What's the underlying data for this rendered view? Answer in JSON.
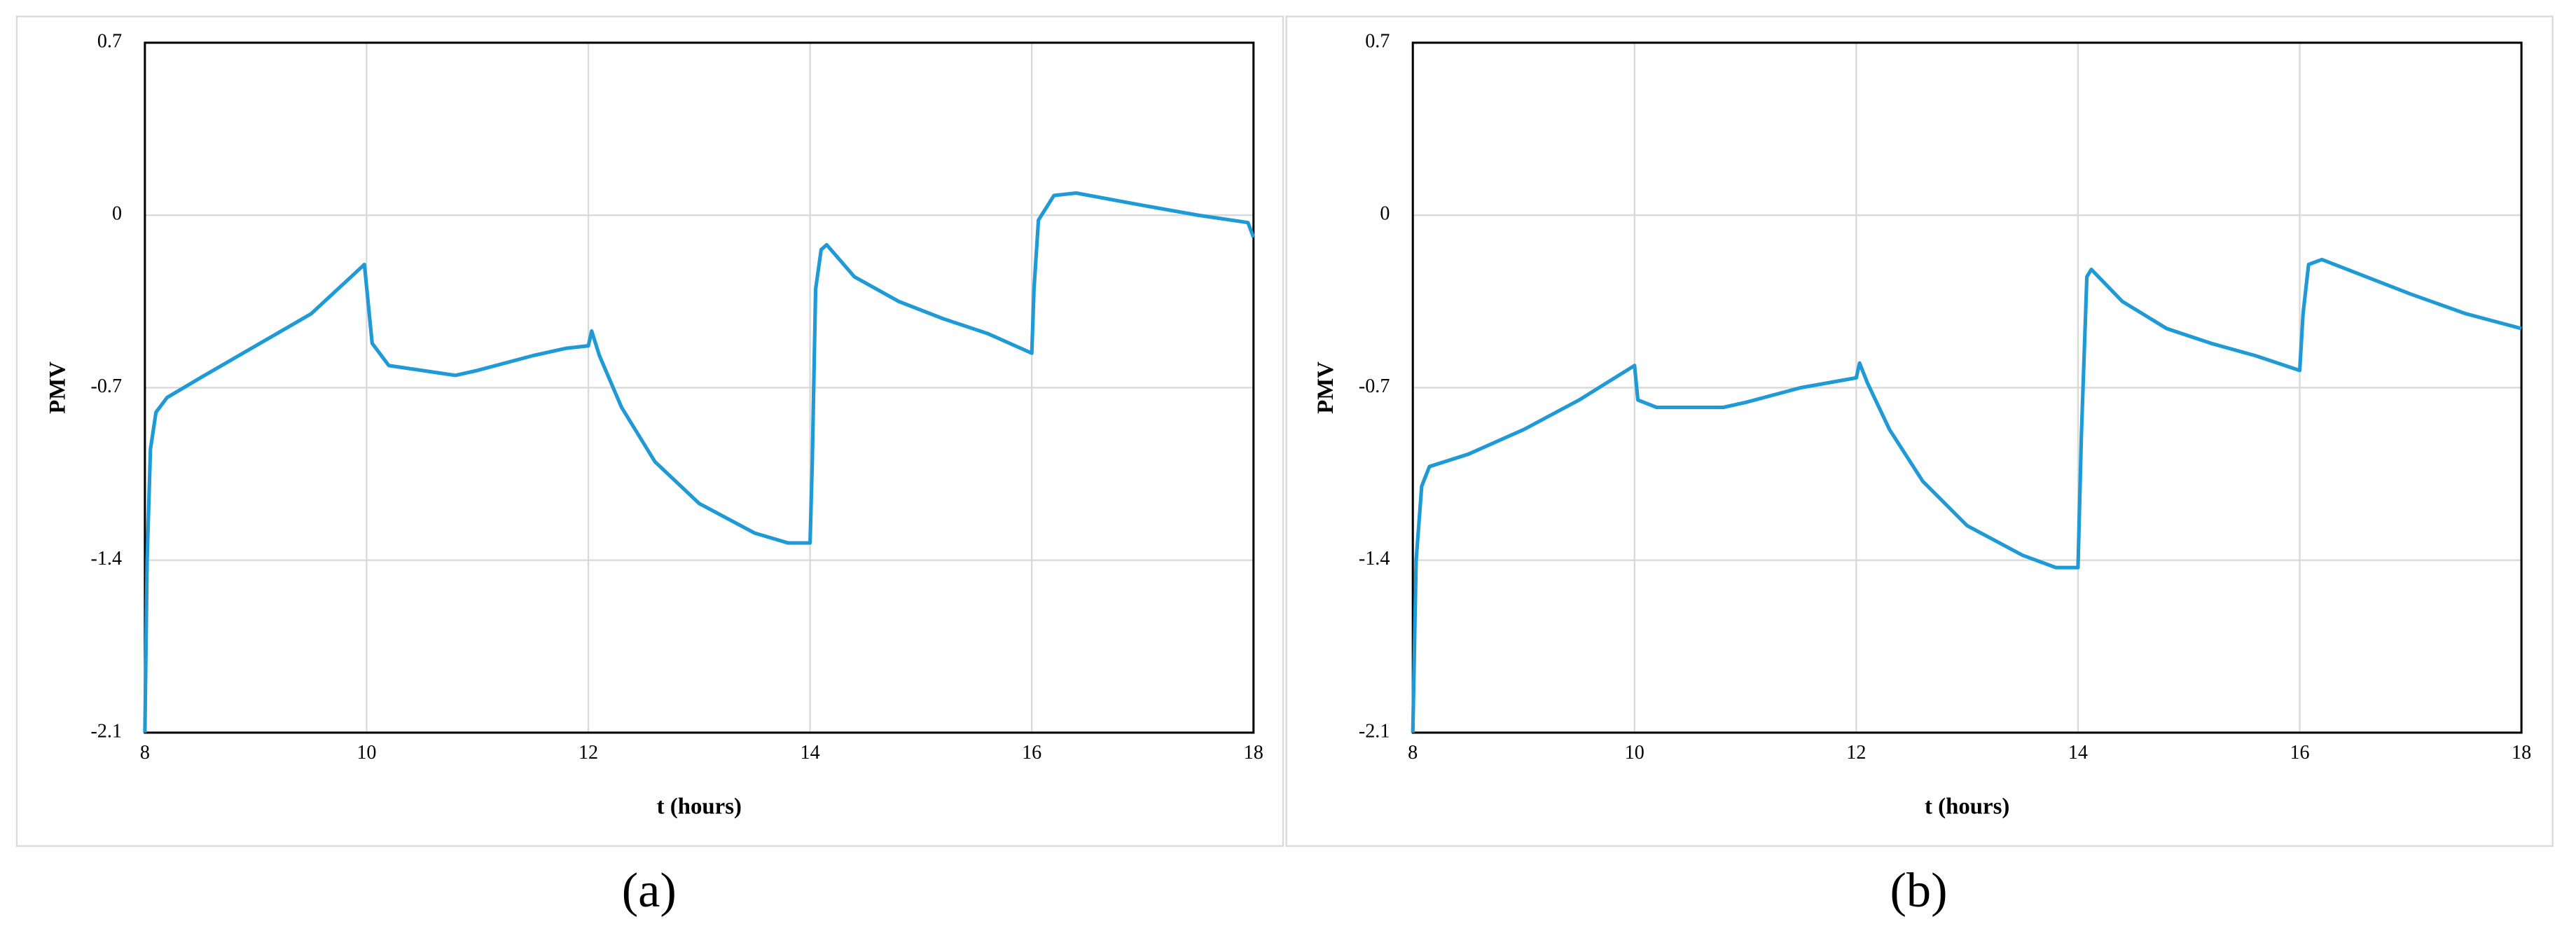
{
  "chart_data": [
    {
      "type": "line",
      "panel_label": "(a)",
      "xlabel": "t (hours)",
      "ylabel": "PMV",
      "color": "#1f9ad6",
      "grid": true,
      "xlim": [
        8,
        18
      ],
      "xticks": [
        8,
        10,
        12,
        14,
        16,
        18
      ],
      "ylim": [
        -2.1,
        0.7
      ],
      "yticks": [
        -2.1,
        -1.4,
        -0.7,
        0,
        0.7
      ],
      "x": [
        8,
        8.02,
        8.05,
        8.1,
        8.2,
        8.5,
        9,
        9.5,
        9.98,
        10.05,
        10.2,
        10.5,
        10.8,
        11,
        11.5,
        11.8,
        12,
        12.03,
        12.1,
        12.3,
        12.6,
        13,
        13.5,
        13.8,
        14,
        14.02,
        14.05,
        14.1,
        14.15,
        14.4,
        14.8,
        15.2,
        15.6,
        16,
        16.02,
        16.06,
        16.2,
        16.4,
        17,
        17.5,
        17.95,
        18
      ],
      "values": [
        -2.1,
        -1.4,
        -0.95,
        -0.8,
        -0.74,
        -0.66,
        -0.53,
        -0.4,
        -0.2,
        -0.52,
        -0.61,
        -0.63,
        -0.65,
        -0.63,
        -0.57,
        -0.54,
        -0.53,
        -0.47,
        -0.57,
        -0.78,
        -1.0,
        -1.17,
        -1.29,
        -1.33,
        -1.33,
        -1.0,
        -0.3,
        -0.14,
        -0.12,
        -0.25,
        -0.35,
        -0.42,
        -0.48,
        -0.56,
        -0.3,
        -0.02,
        0.08,
        0.09,
        0.04,
        0.0,
        -0.03,
        -0.09
      ]
    },
    {
      "type": "line",
      "panel_label": "(b)",
      "xlabel": "t (hours)",
      "ylabel": "PMV",
      "color": "#1f9ad6",
      "grid": true,
      "xlim": [
        8,
        18
      ],
      "xticks": [
        8,
        10,
        12,
        14,
        16,
        18
      ],
      "ylim": [
        -2.1,
        0.7
      ],
      "yticks": [
        -2.1,
        -1.4,
        -0.7,
        0,
        0.7
      ],
      "x": [
        8,
        8.03,
        8.08,
        8.15,
        8.5,
        9,
        9.5,
        10,
        10.03,
        10.2,
        10.8,
        11,
        11.5,
        12,
        12.03,
        12.1,
        12.3,
        12.6,
        13,
        13.5,
        13.8,
        14,
        14.03,
        14.08,
        14.12,
        14.4,
        14.8,
        15.2,
        15.6,
        16,
        16.03,
        16.08,
        16.2,
        16.6,
        17,
        17.5,
        18
      ],
      "values": [
        -2.1,
        -1.4,
        -1.1,
        -1.02,
        -0.97,
        -0.87,
        -0.75,
        -0.61,
        -0.75,
        -0.78,
        -0.78,
        -0.76,
        -0.7,
        -0.66,
        -0.6,
        -0.68,
        -0.87,
        -1.08,
        -1.26,
        -1.38,
        -1.43,
        -1.43,
        -0.9,
        -0.25,
        -0.22,
        -0.35,
        -0.46,
        -0.52,
        -0.57,
        -0.63,
        -0.4,
        -0.2,
        -0.18,
        -0.25,
        -0.32,
        -0.4,
        -0.46
      ]
    }
  ]
}
